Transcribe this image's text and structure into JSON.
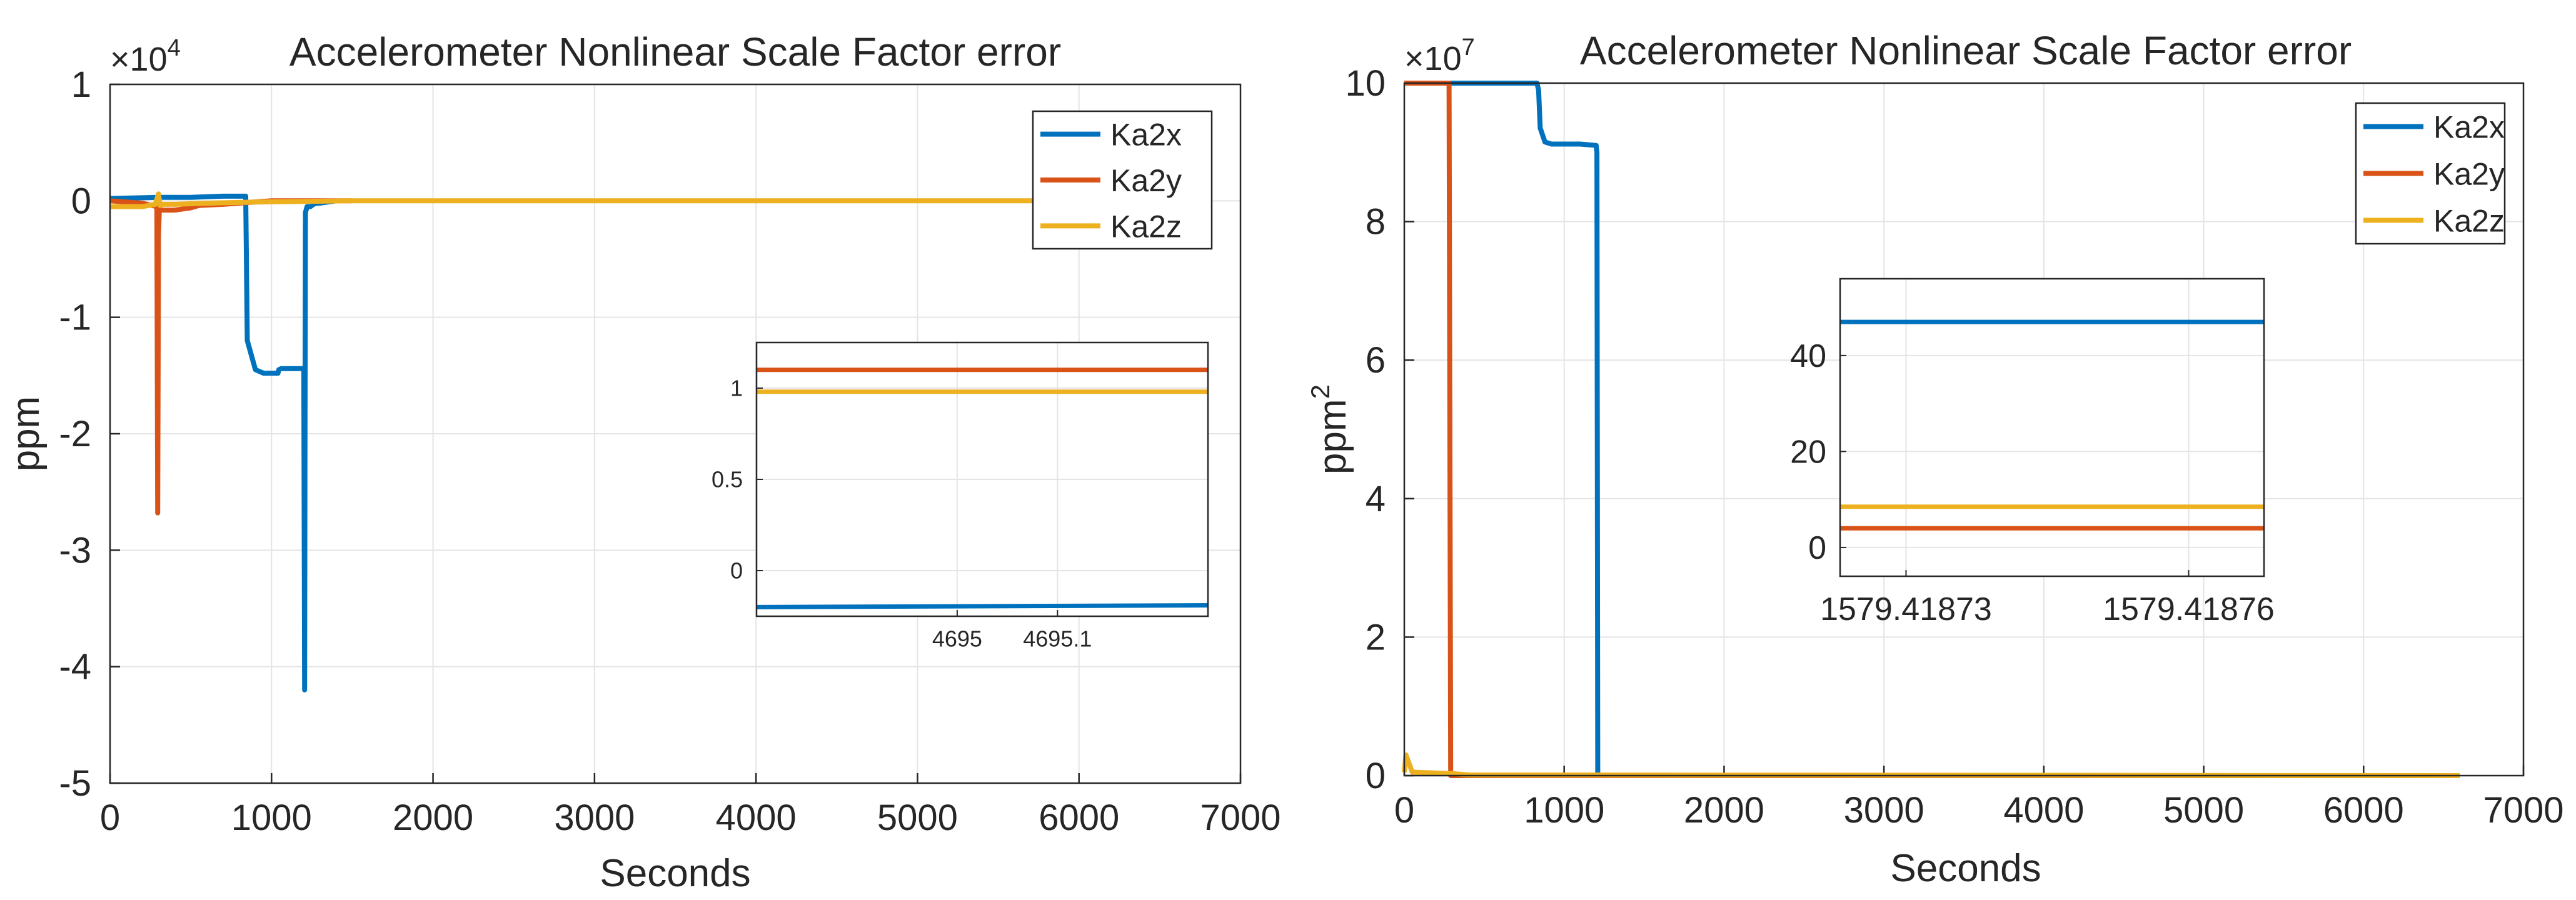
{
  "chart_data": [
    {
      "type": "line",
      "title": "Accelerometer Nonlinear Scale Factor error",
      "xlabel": "Seconds",
      "ylabel": "ppm",
      "y_exponent_label": "×10",
      "y_exponent": "4",
      "xlim": [
        0,
        7000
      ],
      "ylim": [
        -5,
        1
      ],
      "xticks": [
        "0",
        "1000",
        "2000",
        "3000",
        "4000",
        "5000",
        "6000",
        "7000"
      ],
      "yticks": [
        "1",
        "0",
        "-1",
        "-2",
        "-3",
        "-4",
        "-5"
      ],
      "grid": true,
      "legend_position": "top-right",
      "series": [
        {
          "name": "Ka2x",
          "color": "#0072BD",
          "x": [
            0,
            300,
            500,
            700,
            840,
            850,
            870,
            900,
            950,
            1000,
            1040,
            1045,
            1060,
            1100,
            1200,
            1205,
            1207,
            1210,
            1220,
            1240,
            1260,
            1280,
            1300,
            1400
          ],
          "y": [
            0.02,
            0.03,
            0.03,
            0.04,
            0.04,
            -1.2,
            -1.3,
            -1.45,
            -1.48,
            -1.48,
            -1.48,
            -1.45,
            -1.44,
            -1.44,
            -1.44,
            -4.2,
            -2.0,
            -0.1,
            -0.05,
            -0.05,
            -0.03,
            -0.02,
            -0.02,
            0.0
          ]
        },
        {
          "name": "Ka2y",
          "color": "#D95319",
          "x": [
            0,
            200,
            290,
            295,
            300,
            305,
            320,
            400,
            500,
            550,
            700,
            1000,
            1500
          ],
          "y": [
            0.0,
            -0.02,
            -0.05,
            -2.68,
            -0.3,
            -0.08,
            -0.08,
            -0.08,
            -0.06,
            -0.04,
            -0.03,
            0.0,
            0.0
          ]
        },
        {
          "name": "Ka2z",
          "color": "#EDB120",
          "x": [
            0,
            200,
            280,
            300,
            310,
            330,
            400,
            600,
            900,
            1500,
            2000,
            6750
          ],
          "y": [
            -0.05,
            -0.05,
            -0.03,
            0.06,
            -0.04,
            -0.03,
            -0.03,
            -0.02,
            -0.01,
            0.0,
            0.0,
            0.0
          ]
        }
      ],
      "inset": {
        "xlim": [
          4694.8,
          4695.25
        ],
        "ylim": [
          -0.25,
          1.25
        ],
        "xticks": [
          "4695",
          "4695.1"
        ],
        "yticks": [
          "1",
          "0.5",
          "0"
        ],
        "series": [
          {
            "name": "Ka2x",
            "color": "#0072BD",
            "x": [
              4694.8,
              4695.25
            ],
            "y": [
              -0.2,
              -0.19
            ]
          },
          {
            "name": "Ka2y",
            "color": "#D95319",
            "x": [
              4694.8,
              4695.25
            ],
            "y": [
              1.1,
              1.1
            ]
          },
          {
            "name": "Ka2z",
            "color": "#EDB120",
            "x": [
              4694.8,
              4695.25
            ],
            "y": [
              0.98,
              0.98
            ]
          }
        ]
      }
    },
    {
      "type": "line",
      "title": "Accelerometer Nonlinear Scale Factor error",
      "xlabel": "Seconds",
      "ylabel": "ppm",
      "ylabel_superscript": "2",
      "y_exponent_label": "×10",
      "y_exponent": "7",
      "xlim": [
        0,
        7000
      ],
      "ylim": [
        0,
        10
      ],
      "xticks": [
        "0",
        "1000",
        "2000",
        "3000",
        "4000",
        "5000",
        "6000",
        "7000"
      ],
      "yticks": [
        "10",
        "8",
        "6",
        "4",
        "2",
        "0"
      ],
      "grid": true,
      "legend_position": "top-right",
      "series": [
        {
          "name": "Ka2x",
          "color": "#0072BD",
          "x": [
            0,
            830,
            840,
            850,
            880,
            920,
            1000,
            1100,
            1200,
            1205,
            1210,
            6600
          ],
          "y": [
            10,
            10,
            9.9,
            9.35,
            9.15,
            9.12,
            9.12,
            9.12,
            9.1,
            9.0,
            0.0,
            0.0
          ]
        },
        {
          "name": "Ka2y",
          "color": "#D95319",
          "x": [
            0,
            280,
            285,
            290,
            6600
          ],
          "y": [
            10,
            10,
            5.0,
            0.0,
            0.0
          ]
        },
        {
          "name": "Ka2z",
          "color": "#EDB120",
          "x": [
            0,
            10,
            50,
            300,
            400,
            6600
          ],
          "y": [
            0.05,
            0.3,
            0.05,
            0.03,
            0.01,
            0.0
          ]
        }
      ],
      "inset": {
        "xlim": [
          1579.418723,
          1579.418768
        ],
        "ylim": [
          -6,
          56
        ],
        "xticks": [
          "1579.41873",
          "1579.41876"
        ],
        "yticks": [
          "40",
          "20",
          "0"
        ],
        "series": [
          {
            "name": "Ka2x",
            "color": "#0072BD",
            "x": [
              1579.418723,
              1579.418768
            ],
            "y": [
              47,
              47
            ]
          },
          {
            "name": "Ka2y",
            "color": "#D95319",
            "x": [
              1579.418723,
              1579.418768
            ],
            "y": [
              4,
              4
            ]
          },
          {
            "name": "Ka2z",
            "color": "#EDB120",
            "x": [
              1579.418723,
              1579.418768
            ],
            "y": [
              8.5,
              8.5
            ]
          }
        ]
      }
    }
  ]
}
